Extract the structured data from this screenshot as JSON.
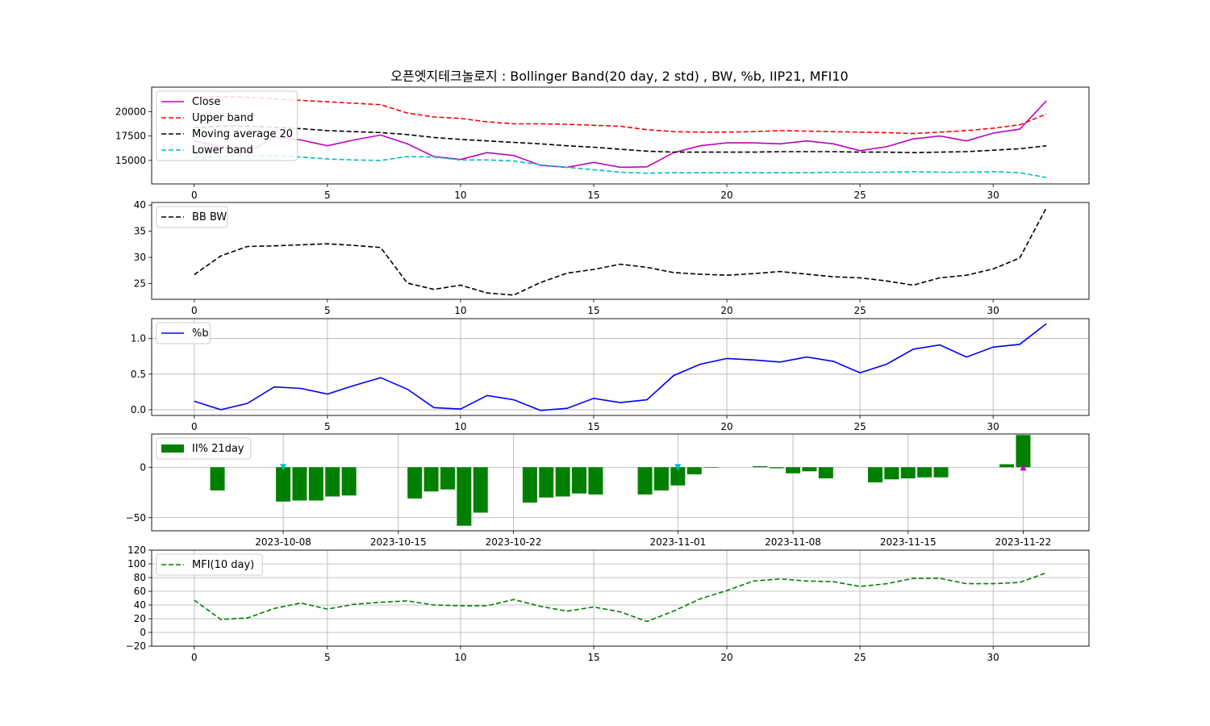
{
  "title": "오픈엣지테크놀로지 : Bollinger Band(20 day, 2 std) , BW, %b, IIP21, MFI10",
  "colors": {
    "close": "#bf00bf",
    "upper": "#ff0000",
    "ma": "#000000",
    "lower": "#00bfbf",
    "bw": "#000000",
    "pb": "#0000ff",
    "bar": "#008000",
    "mfi": "#008000",
    "grid": "#b0b0b0"
  },
  "chart_data": [
    {
      "type": "line",
      "x": [
        0,
        1,
        2,
        3,
        4,
        5,
        6,
        7,
        8,
        9,
        10,
        11,
        12,
        13,
        14,
        15,
        16,
        17,
        18,
        19,
        20,
        21,
        22,
        23,
        24,
        25,
        26,
        27,
        28,
        29,
        30,
        31,
        32
      ],
      "series": [
        {
          "name": "Close",
          "style": "solid",
          "values": [
            17000,
            16400,
            15800,
            17400,
            17100,
            16500,
            17100,
            17600,
            16700,
            15400,
            15100,
            15800,
            15500,
            14500,
            14300,
            14800,
            14300,
            14350,
            15800,
            16500,
            16800,
            16800,
            16700,
            17000,
            16700,
            16000,
            16400,
            17200,
            17500,
            17000,
            17800,
            18200,
            21100
          ]
        },
        {
          "name": "Upper band",
          "style": "dashed",
          "values": [
            21400,
            21550,
            21450,
            21300,
            21150,
            21000,
            20850,
            20700,
            19850,
            19450,
            19300,
            18950,
            18750,
            18750,
            18700,
            18600,
            18500,
            18150,
            17950,
            17900,
            17900,
            17950,
            18050,
            18000,
            17950,
            17900,
            17850,
            17750,
            17900,
            18050,
            18300,
            18650,
            19750
          ]
        },
        {
          "name": "Moving average 20",
          "style": "dashed",
          "values": [
            18350,
            18500,
            18500,
            18400,
            18250,
            18050,
            17950,
            17850,
            17650,
            17350,
            17150,
            17000,
            16850,
            16700,
            16500,
            16350,
            16150,
            15950,
            15850,
            15850,
            15850,
            15850,
            15900,
            15900,
            15900,
            15850,
            15850,
            15800,
            15850,
            15900,
            16050,
            16200,
            16500
          ]
        },
        {
          "name": "Lower band",
          "style": "dashed",
          "values": [
            15300,
            15400,
            15500,
            15500,
            15350,
            15150,
            15050,
            15000,
            15400,
            15350,
            15050,
            15050,
            14950,
            14550,
            14300,
            14050,
            13800,
            13700,
            13750,
            13750,
            13750,
            13750,
            13750,
            13750,
            13800,
            13800,
            13800,
            13850,
            13800,
            13800,
            13850,
            13750,
            13250
          ]
        }
      ],
      "ylim": [
        12600,
        22500
      ],
      "yticks": [
        15000,
        17500,
        20000
      ],
      "xticks": [
        0,
        5,
        10,
        15,
        20,
        25,
        30
      ],
      "legend": "upper-left",
      "grid": false
    },
    {
      "type": "line",
      "x": [
        0,
        1,
        2,
        3,
        4,
        5,
        6,
        7,
        8,
        9,
        10,
        11,
        12,
        13,
        14,
        15,
        16,
        17,
        18,
        19,
        20,
        21,
        22,
        23,
        24,
        25,
        26,
        27,
        28,
        29,
        30,
        31,
        32
      ],
      "series": [
        {
          "name": "BB BW",
          "style": "dashed",
          "values": [
            26.7,
            30.3,
            32.1,
            32.2,
            32.4,
            32.6,
            32.3,
            31.9,
            25.1,
            23.9,
            24.7,
            23.2,
            22.8,
            25.2,
            27.0,
            27.7,
            28.7,
            28.1,
            27.1,
            26.8,
            26.6,
            26.9,
            27.3,
            26.8,
            26.3,
            26.1,
            25.5,
            24.7,
            26.1,
            26.6,
            27.8,
            29.9,
            39.5
          ]
        }
      ],
      "ylim": [
        22,
        40.5
      ],
      "yticks": [
        25,
        30,
        35,
        40
      ],
      "xticks": [
        0,
        5,
        10,
        15,
        20,
        25,
        30
      ],
      "legend": "upper-left",
      "grid": false
    },
    {
      "type": "line",
      "x": [
        0,
        1,
        2,
        3,
        4,
        5,
        6,
        7,
        8,
        9,
        10,
        11,
        12,
        13,
        14,
        15,
        16,
        17,
        18,
        19,
        20,
        21,
        22,
        23,
        24,
        25,
        26,
        27,
        28,
        29,
        30,
        31,
        32
      ],
      "series": [
        {
          "name": "%b",
          "style": "solid",
          "values": [
            0.12,
            0.0,
            0.09,
            0.32,
            0.3,
            0.22,
            0.34,
            0.45,
            0.29,
            0.03,
            0.01,
            0.2,
            0.14,
            -0.01,
            0.02,
            0.16,
            0.1,
            0.14,
            0.48,
            0.64,
            0.72,
            0.7,
            0.67,
            0.74,
            0.68,
            0.52,
            0.64,
            0.85,
            0.91,
            0.74,
            0.88,
            0.92,
            1.21
          ]
        }
      ],
      "ylim": [
        -0.08,
        1.28
      ],
      "yticks": [
        0.0,
        0.5,
        1.0
      ],
      "ytick_labels": [
        "0.0",
        "0.5",
        "1.0"
      ],
      "xticks": [
        0,
        5,
        10,
        15,
        20,
        25,
        30
      ],
      "legend": "upper-left",
      "grid": true
    },
    {
      "type": "bar",
      "x_dates": [
        "2023-10-04",
        "2023-10-08",
        "2023-10-09",
        "2023-10-10",
        "2023-10-11",
        "2023-10-12",
        "2023-10-16",
        "2023-10-17",
        "2023-10-18",
        "2023-10-19",
        "2023-10-20",
        "2023-10-23",
        "2023-10-24",
        "2023-10-25",
        "2023-10-26",
        "2023-10-27",
        "2023-10-30",
        "2023-10-31",
        "2023-11-01",
        "2023-11-02",
        "2023-11-03",
        "2023-11-06",
        "2023-11-07",
        "2023-11-08",
        "2023-11-09",
        "2023-11-10",
        "2023-11-13",
        "2023-11-14",
        "2023-11-15",
        "2023-11-16",
        "2023-11-17",
        "2023-11-21",
        "2023-11-22"
      ],
      "series": [
        {
          "name": "II% 21day",
          "values": [
            -23,
            -34,
            -33,
            -33,
            -29,
            -28,
            -31,
            -24,
            -22,
            -58,
            -45,
            -35,
            -30,
            -29,
            -26,
            -27,
            -27,
            -23,
            -18,
            -7,
            0,
            1,
            -1,
            -6,
            -4,
            -11,
            -15,
            -12,
            -11,
            -10,
            -10,
            3,
            32
          ]
        }
      ],
      "markers": [
        {
          "date": "2023-10-08",
          "value": 0,
          "shape": "triangle-down",
          "color": "#00bfbf"
        },
        {
          "date": "2023-11-01",
          "value": 0,
          "shape": "triangle-down",
          "color": "#00bfbf"
        },
        {
          "date": "2023-11-22",
          "value": 0,
          "shape": "triangle-up",
          "color": "#bf00bf"
        }
      ],
      "ylim": [
        -63,
        33
      ],
      "yticks": [
        -50,
        0
      ],
      "ytick_labels": [
        "−50",
        "0"
      ],
      "xticks": [
        "2023-10-08",
        "2023-10-15",
        "2023-10-22",
        "2023-11-01",
        "2023-11-08",
        "2023-11-15",
        "2023-11-22"
      ],
      "legend": "upper-left",
      "grid": true
    },
    {
      "type": "line",
      "x": [
        0,
        1,
        2,
        3,
        4,
        5,
        6,
        7,
        8,
        9,
        10,
        11,
        12,
        13,
        14,
        15,
        16,
        17,
        18,
        19,
        20,
        21,
        22,
        23,
        24,
        25,
        26,
        27,
        28,
        29,
        30,
        31,
        32
      ],
      "series": [
        {
          "name": "MFI(10 day)",
          "style": "dashed",
          "values": [
            47,
            19,
            21,
            35,
            43,
            34,
            41,
            44,
            46,
            40,
            39,
            39,
            48,
            38,
            31,
            37,
            30,
            16,
            31,
            49,
            61,
            75,
            78,
            75,
            74,
            67,
            71,
            79,
            79,
            71,
            71,
            73,
            87
          ]
        }
      ],
      "ylim": [
        -20,
        120
      ],
      "yticks": [
        -20,
        0,
        20,
        40,
        60,
        80,
        100,
        120
      ],
      "ytick_labels": [
        "−20",
        "0",
        "20",
        "40",
        "60",
        "80",
        "100",
        "120"
      ],
      "xticks": [
        0,
        5,
        10,
        15,
        20,
        25,
        30
      ],
      "legend": "upper-left",
      "grid": true
    }
  ]
}
